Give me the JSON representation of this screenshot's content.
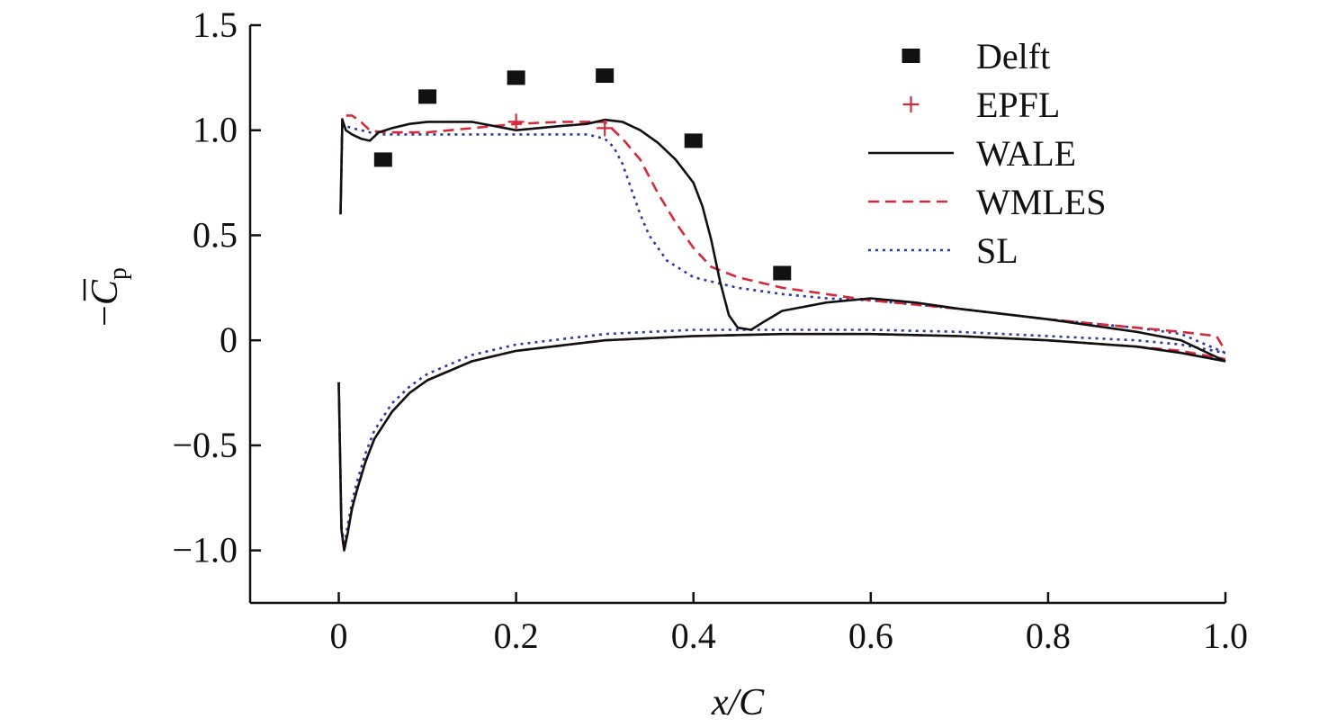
{
  "chart_data": {
    "type": "line",
    "title": "",
    "xlabel": "x/C",
    "ylabel_prefix": "−",
    "ylabel_main": "C",
    "ylabel_sub": "p",
    "xlim": [
      -0.1,
      1.0
    ],
    "ylim": [
      -1.25,
      1.5
    ],
    "xticks": [
      0,
      0.2,
      0.4,
      0.6,
      0.8,
      1.0
    ],
    "xtick_labels": [
      "0",
      "0.2",
      "0.4",
      "0.6",
      "0.8",
      "1.0"
    ],
    "yticks": [
      1.5,
      1.0,
      0.5,
      0,
      -0.5,
      -1.0
    ],
    "ytick_labels": [
      "1.5",
      "1.0",
      "0.5",
      "0",
      "−0.5",
      "−1.0"
    ],
    "grid": false,
    "legend_position": "top-right",
    "colors": {
      "Delft": "#111111",
      "EPFL": "#d62a3a",
      "WALE": "#111111",
      "WMLES": "#d62a3a",
      "SL": "#2e3aa0"
    },
    "series": [
      {
        "name": "Delft",
        "marker": "square",
        "x": [
          0.05,
          0.1,
          0.2,
          0.3,
          0.4,
          0.5
        ],
        "y": [
          0.86,
          1.16,
          1.25,
          1.26,
          0.95,
          0.32
        ]
      },
      {
        "name": "EPFL",
        "marker": "plus",
        "x": [
          0.2,
          0.3
        ],
        "y": [
          1.04,
          1.01
        ]
      },
      {
        "name": "WALE",
        "style": "solid",
        "suction": {
          "x": [
            0.002,
            0.004,
            0.008,
            0.015,
            0.025,
            0.035,
            0.045,
            0.06,
            0.08,
            0.1,
            0.12,
            0.15,
            0.2,
            0.25,
            0.28,
            0.3,
            0.32,
            0.34,
            0.36,
            0.38,
            0.4,
            0.41,
            0.42,
            0.43,
            0.44,
            0.45,
            0.465,
            0.48,
            0.5,
            0.55,
            0.6,
            0.65,
            0.7,
            0.8,
            0.9,
            0.95,
            1.0
          ],
          "y": [
            0.6,
            1.05,
            1.0,
            0.98,
            0.96,
            0.95,
            0.99,
            1.01,
            1.03,
            1.04,
            1.04,
            1.04,
            1.0,
            1.02,
            1.03,
            1.05,
            1.04,
            1.0,
            0.94,
            0.86,
            0.75,
            0.64,
            0.48,
            0.28,
            0.12,
            0.06,
            0.05,
            0.09,
            0.14,
            0.18,
            0.2,
            0.18,
            0.15,
            0.1,
            0.04,
            0.0,
            -0.1
          ]
        },
        "pressure": {
          "x": [
            0.0,
            0.003,
            0.006,
            0.01,
            0.015,
            0.02,
            0.03,
            0.04,
            0.06,
            0.08,
            0.1,
            0.15,
            0.2,
            0.3,
            0.4,
            0.5,
            0.6,
            0.7,
            0.8,
            0.9,
            0.95,
            1.0
          ],
          "y": [
            -0.2,
            -0.9,
            -1.0,
            -0.92,
            -0.8,
            -0.72,
            -0.58,
            -0.47,
            -0.34,
            -0.25,
            -0.19,
            -0.1,
            -0.05,
            0.0,
            0.02,
            0.03,
            0.03,
            0.02,
            0.0,
            -0.03,
            -0.06,
            -0.1
          ]
        }
      },
      {
        "name": "WMLES",
        "style": "dashed",
        "suction": {
          "x": [
            0.002,
            0.004,
            0.008,
            0.015,
            0.025,
            0.035,
            0.05,
            0.1,
            0.15,
            0.2,
            0.25,
            0.3,
            0.32,
            0.34,
            0.36,
            0.38,
            0.4,
            0.42,
            0.45,
            0.5,
            0.55,
            0.6,
            0.65,
            0.7,
            0.8,
            0.9,
            0.95,
            0.99,
            1.0
          ],
          "y": [
            0.6,
            1.07,
            1.07,
            1.07,
            1.04,
            1.0,
            0.99,
            0.99,
            1.01,
            1.03,
            1.04,
            1.04,
            0.96,
            0.86,
            0.7,
            0.56,
            0.44,
            0.35,
            0.3,
            0.25,
            0.22,
            0.19,
            0.17,
            0.15,
            0.1,
            0.06,
            0.04,
            0.02,
            -0.05
          ]
        },
        "pressure": {
          "x": [
            0.0,
            0.003,
            0.006,
            0.01,
            0.015,
            0.02,
            0.03,
            0.04,
            0.06,
            0.08,
            0.1,
            0.15,
            0.2,
            0.3,
            0.4,
            0.5,
            0.6,
            0.7,
            0.8,
            0.9,
            0.95,
            1.0
          ],
          "y": [
            -0.2,
            -0.9,
            -1.0,
            -0.91,
            -0.8,
            -0.72,
            -0.58,
            -0.47,
            -0.34,
            -0.25,
            -0.19,
            -0.1,
            -0.05,
            0.0,
            0.02,
            0.03,
            0.03,
            0.02,
            0.0,
            -0.03,
            -0.05,
            -0.09
          ]
        }
      },
      {
        "name": "SL",
        "style": "dotted",
        "suction": {
          "x": [
            0.002,
            0.004,
            0.008,
            0.015,
            0.025,
            0.035,
            0.05,
            0.1,
            0.15,
            0.2,
            0.25,
            0.28,
            0.3,
            0.31,
            0.32,
            0.33,
            0.34,
            0.35,
            0.37,
            0.4,
            0.45,
            0.5,
            0.55,
            0.6,
            0.7,
            0.8,
            0.9,
            0.95,
            1.0
          ],
          "y": [
            0.6,
            1.02,
            1.02,
            1.01,
            1.0,
            0.99,
            0.98,
            0.98,
            0.98,
            0.98,
            0.98,
            0.98,
            0.96,
            0.92,
            0.84,
            0.72,
            0.6,
            0.5,
            0.38,
            0.3,
            0.25,
            0.22,
            0.2,
            0.19,
            0.15,
            0.1,
            0.06,
            0.03,
            -0.06
          ]
        },
        "pressure": {
          "x": [
            0.0,
            0.003,
            0.006,
            0.01,
            0.015,
            0.02,
            0.03,
            0.04,
            0.06,
            0.08,
            0.1,
            0.15,
            0.2,
            0.3,
            0.4,
            0.5,
            0.6,
            0.7,
            0.8,
            0.9,
            0.95,
            1.0
          ],
          "y": [
            -0.2,
            -0.88,
            -0.98,
            -0.88,
            -0.77,
            -0.68,
            -0.54,
            -0.43,
            -0.3,
            -0.22,
            -0.16,
            -0.07,
            -0.02,
            0.03,
            0.05,
            0.05,
            0.05,
            0.04,
            0.02,
            0.0,
            -0.02,
            -0.06
          ]
        }
      }
    ]
  }
}
